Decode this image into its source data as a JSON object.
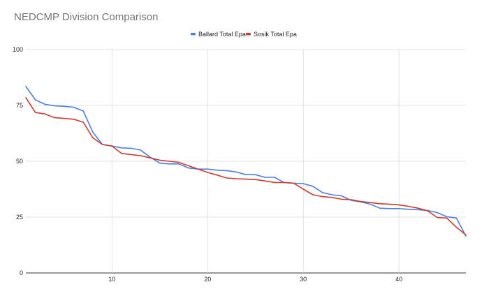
{
  "chart_data": {
    "type": "line",
    "title": "NEDCMP Division Comparison",
    "xlabel": "",
    "ylabel": "",
    "xlim": [
      1,
      47
    ],
    "ylim": [
      0,
      100
    ],
    "x_ticks": [
      "10",
      "20",
      "30",
      "40"
    ],
    "x_tick_values": [
      10,
      20,
      30,
      40
    ],
    "y_ticks": [
      "0",
      "25",
      "50",
      "75",
      "100"
    ],
    "y_tick_values": [
      0,
      25,
      50,
      75,
      100
    ],
    "grid": true,
    "legend_position": "top-center",
    "x": [
      1,
      2,
      3,
      4,
      5,
      6,
      7,
      8,
      9,
      10,
      11,
      12,
      13,
      14,
      15,
      16,
      17,
      18,
      19,
      20,
      21,
      22,
      23,
      24,
      25,
      26,
      27,
      28,
      29,
      30,
      31,
      32,
      33,
      34,
      35,
      36,
      37,
      38,
      39,
      40,
      41,
      42,
      43,
      44,
      45,
      46,
      47
    ],
    "series": [
      {
        "name": "Ballard Total Epa",
        "color": "#4a7fdc",
        "values": [
          83.5,
          77.5,
          75.5,
          74.8,
          74.6,
          74.2,
          72.5,
          63,
          57.5,
          56.8,
          56,
          55.8,
          55,
          51.8,
          49.2,
          48.8,
          48.8,
          47,
          46.5,
          46.5,
          46,
          45.8,
          45.2,
          44,
          44,
          42.8,
          42.8,
          40.5,
          40.2,
          40,
          38.8,
          36,
          35,
          34.5,
          32.5,
          31.8,
          30.8,
          29,
          28.8,
          28.8,
          28.5,
          28.3,
          28,
          27,
          25.2,
          24.6,
          16.5
        ]
      },
      {
        "name": "Sosik Total Epa",
        "color": "#cc3a2f",
        "values": [
          78.5,
          71.8,
          71.2,
          69.5,
          69.2,
          68.8,
          67.5,
          60.5,
          57.5,
          56.8,
          53.5,
          53,
          52.5,
          51.5,
          50.5,
          50,
          49.5,
          48,
          46.5,
          45,
          43.8,
          42.5,
          42.2,
          42,
          41.8,
          41.2,
          40.5,
          40.5,
          40.2,
          37.5,
          35,
          34.2,
          33.8,
          33,
          32.8,
          32,
          31.5,
          31,
          30.8,
          30.5,
          29.8,
          29,
          27.8,
          24.8,
          24.6,
          20.5,
          17
        ]
      }
    ]
  }
}
